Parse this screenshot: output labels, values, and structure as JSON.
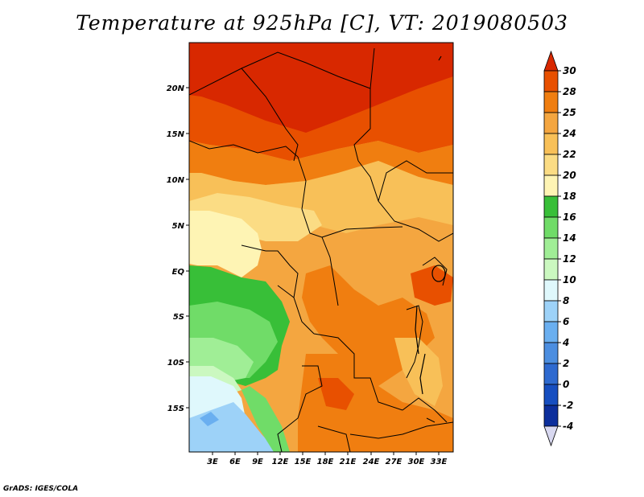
{
  "title": "Temperature at 925hPa [C], VT: 2019080503",
  "credit": "GrADS: IGES/COLA",
  "map": {
    "lat_labels": [
      "20N",
      "15N",
      "10N",
      "5N",
      "EQ",
      "5S",
      "10S",
      "15S"
    ],
    "lon_labels": [
      "3E",
      "6E",
      "9E",
      "12E",
      "15E",
      "18E",
      "21E",
      "24E",
      "27E",
      "30E",
      "33E"
    ],
    "lat_range": [
      -19.5,
      24.5
    ],
    "lon_range": [
      0,
      35
    ]
  },
  "colorbar": {
    "labels": [
      "30",
      "28",
      "25",
      "24",
      "22",
      "20",
      "18",
      "16",
      "14",
      "12",
      "10",
      "8",
      "6",
      "4",
      "2",
      "0",
      "-2",
      "-4"
    ],
    "colors": {
      "c30": "#d82800",
      "c28": "#e85000",
      "c25": "#f07e10",
      "c24": "#f4a640",
      "c22": "#f8c058",
      "c20": "#fbdc84",
      "c18": "#fef4b4",
      "c16": "#38bf38",
      "c14": "#70dc68",
      "c12": "#a0ee96",
      "c10": "#cbf8c0",
      "c8": "#dff8fc",
      "c6": "#9dd2f8",
      "c4": "#6aaff0",
      "c2": "#4c8ee0",
      "c0": "#2e6ad0",
      "cm2": "#164ec0",
      "cm4": "#0c2e9c",
      "cm6": "#14086c",
      "cbottom": "#d8d8f0"
    }
  }
}
